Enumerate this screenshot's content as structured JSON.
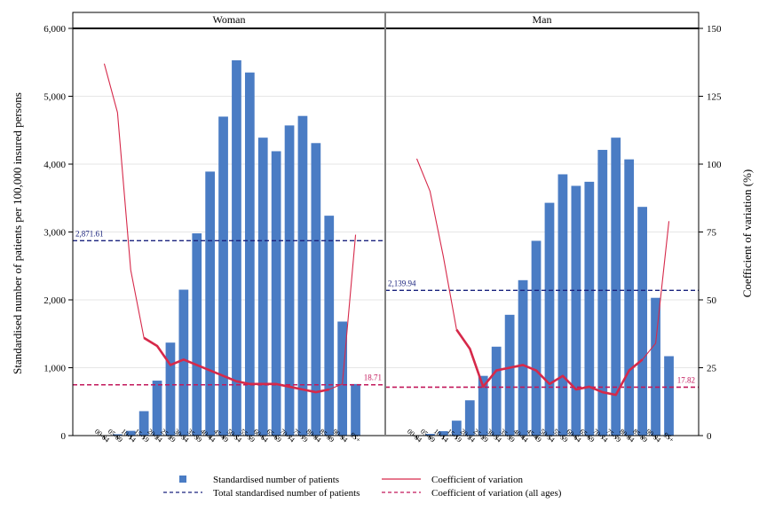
{
  "chart_data": {
    "type": "bar",
    "panels": [
      {
        "name": "Woman",
        "categories": [
          "00-04",
          "05-09",
          "10-14",
          "15-19",
          "20-24",
          "25-29",
          "30-34",
          "35-39",
          "40-44",
          "45-49",
          "50-54",
          "55-59",
          "60-64",
          "65-69",
          "70-74",
          "75-79",
          "80-84",
          "85-89",
          "90-94",
          "95+"
        ],
        "patients": [
          5,
          20,
          70,
          360,
          810,
          1370,
          2150,
          2980,
          3890,
          4700,
          5530,
          5350,
          4390,
          4190,
          4570,
          4710,
          4310,
          3240,
          1680,
          760
        ],
        "cv": [
          137,
          119,
          61,
          36,
          33,
          26,
          28,
          26,
          24,
          22,
          20,
          19,
          19,
          19,
          18,
          17,
          16,
          17,
          19,
          74
        ],
        "cv_bold_from_index": 3,
        "cv_bold_to_index": 17,
        "total_patients": 2871.61,
        "total_patients_label": "2,871.61",
        "cv_all_ages": 18.71,
        "cv_all_ages_label": "18.71"
      },
      {
        "name": "Man",
        "categories": [
          "00-04",
          "05-09",
          "10-14",
          "15-19",
          "20-24",
          "25-29",
          "30-34",
          "35-39",
          "40-44",
          "45-49",
          "50-54",
          "55-59",
          "60-64",
          "65-69",
          "70-74",
          "75-79",
          "80-84",
          "85-89",
          "90-94",
          "95+"
        ],
        "patients": [
          5,
          25,
          65,
          220,
          520,
          880,
          1310,
          1780,
          2290,
          2870,
          3430,
          3850,
          3680,
          3740,
          4210,
          4390,
          4070,
          3370,
          2030,
          1170
        ],
        "cv": [
          102,
          90,
          66,
          39,
          32,
          18,
          24,
          25,
          26,
          24,
          19,
          22,
          17,
          18,
          16,
          15,
          24,
          28,
          34,
          79
        ],
        "cv_bold_from_index": 3,
        "cv_bold_to_index": 17,
        "total_patients": 2139.94,
        "total_patients_label": "2,139.94",
        "cv_all_ages": 17.82,
        "cv_all_ages_label": "17.82"
      }
    ],
    "ylabel": "Standardised number of patients per 100,000 insured persons",
    "y2label": "Coefficient of variation (%)",
    "ylim": [
      0,
      6000
    ],
    "yticks": [
      0,
      1000,
      2000,
      3000,
      4000,
      5000,
      6000
    ],
    "ytick_labels": [
      "0",
      "1,000",
      "2,000",
      "3,000",
      "4,000",
      "5,000",
      "6,000"
    ],
    "y2lim": [
      0,
      150
    ],
    "y2ticks": [
      0,
      25,
      50,
      75,
      100,
      125,
      150
    ],
    "grid": true,
    "legend": {
      "placement": "bottom",
      "items": [
        {
          "key": "bar",
          "label": "Standardised number of patients"
        },
        {
          "key": "cv",
          "label": "Coefficient of variation"
        },
        {
          "key": "total",
          "label": "Total standardised number of patients"
        },
        {
          "key": "cvall",
          "label": "Coefficient of variation (all ages)"
        }
      ]
    },
    "colors": {
      "bar": "#4a7cc4",
      "cv": "#d6294a",
      "total": "#1a237e",
      "cvall": "#c2185b",
      "grid": "#e6e6e6"
    }
  }
}
